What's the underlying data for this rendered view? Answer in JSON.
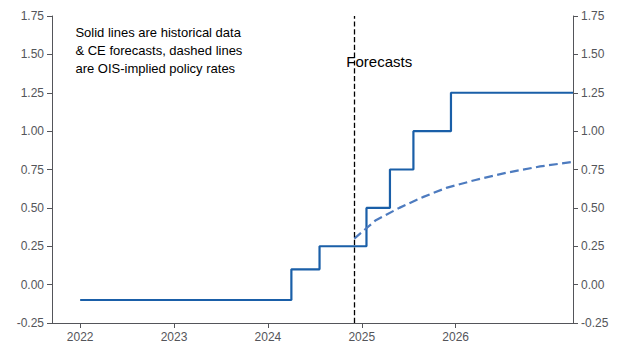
{
  "chart_data": {
    "type": "line",
    "xlim": [
      2021.7,
      2027.25
    ],
    "xticks": [
      2022,
      2023,
      2024,
      2025,
      2026
    ],
    "ylim": [
      -0.25,
      1.75
    ],
    "yticks": [
      -0.25,
      {
        "value": 0,
        "label": "0.00"
      },
      0.25,
      {
        "value": 0.5,
        "label": "0.50"
      },
      0.75,
      {
        "value": 1,
        "label": "1.00"
      },
      1.25,
      {
        "value": 1.5,
        "label": "1.50"
      },
      1.75
    ],
    "y2lim": [
      -0.25,
      1.75
    ],
    "y2ticks": [
      -0.25,
      {
        "value": 0,
        "label": "0.00"
      },
      0.25,
      {
        "value": 0.5,
        "label": "0.50"
      },
      0.75,
      {
        "value": 1,
        "label": "1.00"
      },
      1.25,
      {
        "value": 1.5,
        "label": "1.50"
      },
      1.75
    ],
    "grid": false,
    "series": [
      {
        "x": [
          2022.0,
          2024.25,
          2024.25,
          2024.55,
          2024.55,
          2024.85,
          2024.85,
          2025.05,
          2025.05,
          2025.3,
          2025.3,
          2025.55,
          2025.55,
          2025.95,
          2025.95,
          2026.35,
          2026.35,
          2027.25
        ],
        "values": [
          -0.1,
          -0.1,
          0.1,
          0.1,
          0.25,
          0.25,
          0.25,
          0.25,
          0.5,
          0.5,
          0.75,
          0.75,
          1.0,
          1.0,
          1.25,
          1.25,
          1.25,
          1.25
        ],
        "color": "#1a5fa8",
        "line_style": "solid"
      },
      {
        "x": [
          2024.92,
          2025.15,
          2025.4,
          2025.65,
          2025.9,
          2026.2,
          2026.55,
          2026.9,
          2027.25
        ],
        "values": [
          0.3,
          0.42,
          0.5,
          0.57,
          0.63,
          0.68,
          0.73,
          0.77,
          0.8
        ],
        "color": "#4d7bbf",
        "line_style": "dashed"
      }
    ],
    "vlines": [
      {
        "x": 2024.92,
        "color": "#000000",
        "line_style": "dashed"
      }
    ],
    "annotations": [
      {
        "text": "Solid lines are historical data\n& CE forecasts, dashed lines\nare OIS-implied policy rates"
      },
      {
        "text": "Forecasts"
      }
    ]
  }
}
